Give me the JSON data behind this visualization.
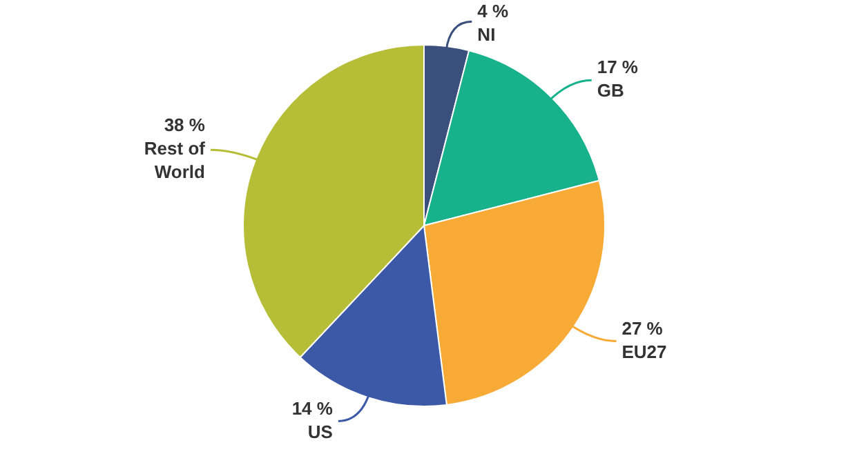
{
  "chart_data": {
    "type": "pie",
    "categories": [
      "NI",
      "GB",
      "EU27",
      "US",
      "Rest of World"
    ],
    "values": [
      4,
      17,
      27,
      14,
      38
    ],
    "value_labels": [
      "4 %",
      "17 %",
      "27 %",
      "14 %",
      "38 %"
    ],
    "colors": [
      "#3b4f7c",
      "#17b28c",
      "#f8aa36",
      "#3b59a6",
      "#b5be36"
    ]
  }
}
